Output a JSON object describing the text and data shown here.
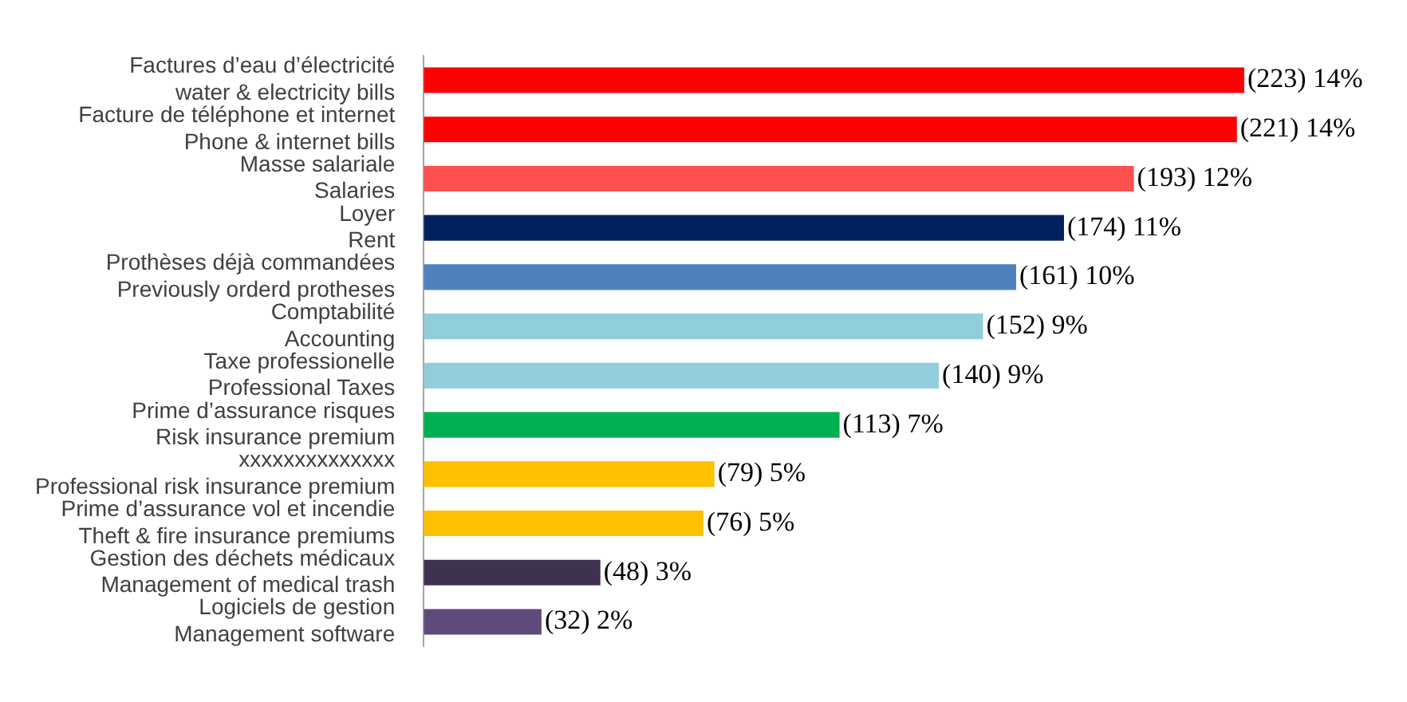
{
  "chart_data": {
    "type": "bar",
    "orientation": "horizontal",
    "categories": [
      "Factures d’eau d’électricité\nwater & electricity bills",
      "Facture de téléphone et internet\nPhone & internet bills",
      "Masse salariale\nSalaries",
      "Loyer\nRent",
      "Prothèses déjà commandées\nPreviously orderd protheses",
      "Comptabilité\nAccounting",
      "Taxe professionelle\nProfessional Taxes",
      "Prime d’assurance risques\nRisk insurance premium",
      "xxxxxxxxxxxxxx\nProfessional risk insurance premium",
      "Prime d’assurance vol et incendie\nTheft & fire insurance premiums",
      "Gestion des déchets médicaux\nManagement of medical trash",
      "Logiciels de gestion\nManagement software"
    ],
    "values": [
      223,
      221,
      193,
      174,
      161,
      152,
      140,
      113,
      79,
      76,
      48,
      32
    ],
    "value_labels": [
      "(223) 14%",
      "(221) 14%",
      "(193) 12%",
      "(174) 11%",
      "(161) 10%",
      "(152) 9%",
      "(140) 9%",
      "(113) 7%",
      "(79) 5%",
      "(76) 5%",
      "(48) 3%",
      "(32) 2%"
    ],
    "colors": [
      "#ff0000",
      "#ff0000",
      "#ff5050",
      "#002060",
      "#4f81bd",
      "#92cddc",
      "#92cddc",
      "#00b050",
      "#ffc000",
      "#ffc000",
      "#403151",
      "#604a7b"
    ],
    "legend": false
  }
}
